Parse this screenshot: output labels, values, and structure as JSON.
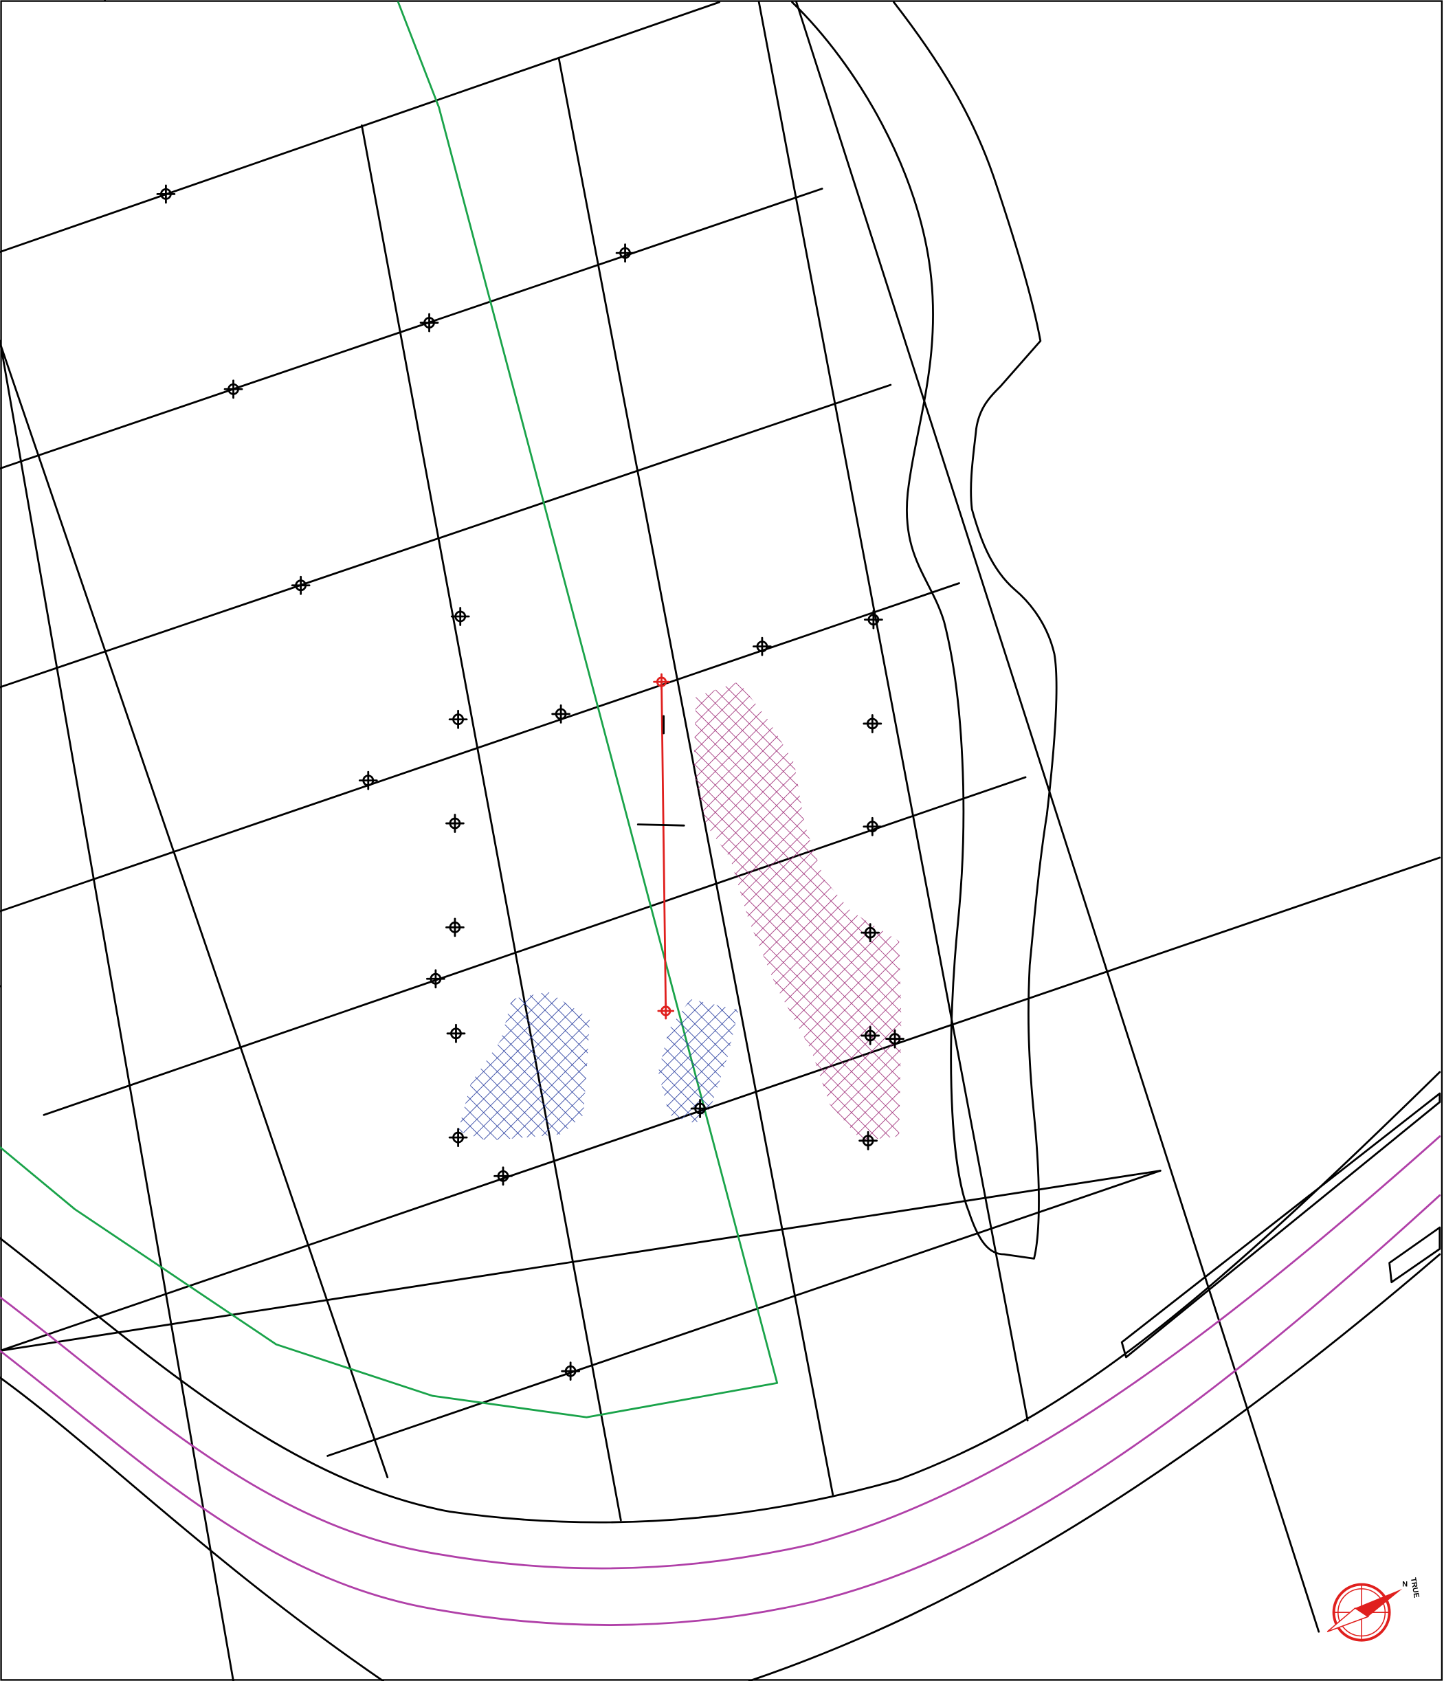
{
  "colors": {
    "background": "#ffffff",
    "linework": "#000000",
    "boundary_green": "#1aa34a",
    "road_magenta": "#b040a8",
    "section_red": "#e0201e",
    "hatch_blue": "#2a3fa0",
    "hatch_magenta": "#a0307a",
    "compass_red": "#e0201e"
  },
  "layers": [
    {
      "name": "grid",
      "color": "#000000"
    },
    {
      "name": "boundary",
      "color": "#1aa34a"
    },
    {
      "name": "road",
      "color": "#b040a8"
    },
    {
      "name": "section",
      "color": "#e0201e"
    },
    {
      "name": "hatch-zone-blue",
      "color": "#2a3fa0"
    },
    {
      "name": "hatch-zone-magenta",
      "color": "#a0307a"
    }
  ],
  "north_arrow": {
    "label_top": "TRUE",
    "label_bottom": "N",
    "icon": "compass-icon"
  }
}
